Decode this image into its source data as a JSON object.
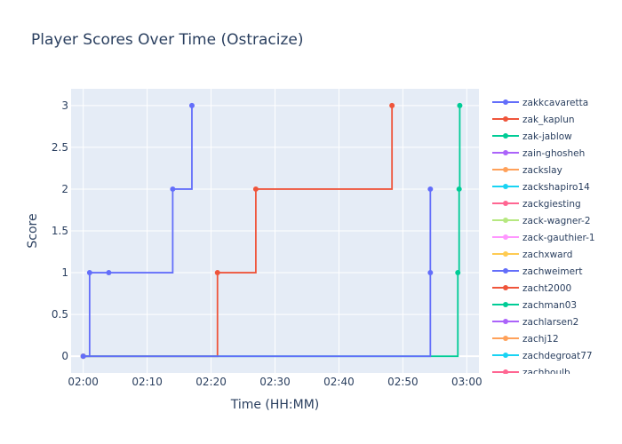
{
  "chart_data": {
    "type": "line",
    "title": "Player Scores Over Time (Ostracize)",
    "xlabel": "Time (HH:MM)",
    "ylabel": "Score",
    "x_ticks": [
      "02:00",
      "02:10",
      "02:20",
      "02:30",
      "02:40",
      "02:50",
      "03:00"
    ],
    "y_ticks": [
      "0",
      "0.5",
      "1",
      "1.5",
      "2",
      "2.5",
      "3"
    ],
    "xlim": [
      "02:00",
      "03:00"
    ],
    "ylim": [
      -0.2,
      3.2
    ],
    "grid": true,
    "line_shape": "step",
    "legend_position": "right",
    "series": [
      {
        "name": "zakkcavaretta",
        "color": "#636efa",
        "points": [
          [
            "02:00",
            0
          ],
          [
            "02:01",
            1
          ],
          [
            "02:04",
            1
          ],
          [
            "02:14",
            2
          ],
          [
            "02:17",
            3
          ]
        ]
      },
      {
        "name": "zak_kaplun",
        "color": "#ef553b",
        "points": [
          [
            "02:00",
            0
          ],
          [
            "02:21",
            1
          ],
          [
            "02:27",
            2
          ],
          [
            "02:48.3",
            3
          ]
        ]
      },
      {
        "name": "zak-jablow",
        "color": "#00cc96",
        "points": [
          [
            "02:00",
            0
          ],
          [
            "02:58.6",
            1
          ],
          [
            "02:58.8",
            2
          ],
          [
            "02:58.9",
            3
          ]
        ]
      },
      {
        "name": "zain-ghosheh",
        "color": "#ab63fa",
        "points": [
          [
            "02:00",
            0
          ]
        ]
      },
      {
        "name": "zackslay",
        "color": "#ffa15a",
        "points": [
          [
            "02:00",
            0
          ]
        ]
      },
      {
        "name": "zackshapiro14",
        "color": "#19d3f3",
        "points": [
          [
            "02:00",
            0
          ]
        ]
      },
      {
        "name": "zackgiesting",
        "color": "#ff6692",
        "points": [
          [
            "02:00",
            0
          ]
        ]
      },
      {
        "name": "zack-wagner-2",
        "color": "#b6e880",
        "points": [
          [
            "02:00",
            0
          ]
        ]
      },
      {
        "name": "zack-gauthier-1",
        "color": "#ff97ff",
        "points": [
          [
            "02:00",
            0
          ]
        ]
      },
      {
        "name": "zachxward",
        "color": "#fecb52",
        "points": [
          [
            "02:00",
            0
          ]
        ]
      },
      {
        "name": "zachweimert",
        "color": "#636efa",
        "points": [
          [
            "02:00",
            0
          ],
          [
            "02:54.3",
            1
          ],
          [
            "02:54.3",
            2
          ]
        ]
      },
      {
        "name": "zacht2000",
        "color": "#ef553b",
        "points": []
      },
      {
        "name": "zachman03",
        "color": "#00cc96",
        "points": []
      },
      {
        "name": "zachlarsen2",
        "color": "#ab63fa",
        "points": []
      },
      {
        "name": "zachj12",
        "color": "#ffa15a",
        "points": []
      },
      {
        "name": "zachdegroat77",
        "color": "#19d3f3",
        "points": []
      },
      {
        "name": "zachboulb",
        "color": "#ff6692",
        "points": []
      }
    ]
  }
}
